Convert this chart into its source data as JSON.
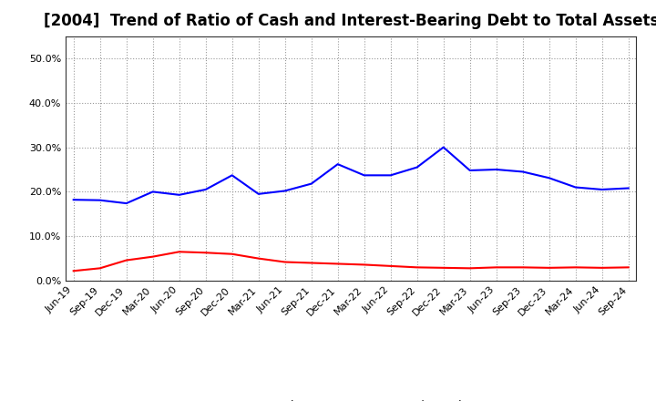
{
  "title": "[2004]  Trend of Ratio of Cash and Interest-Bearing Debt to Total Assets",
  "labels": [
    "Jun-19",
    "Sep-19",
    "Dec-19",
    "Mar-20",
    "Jun-20",
    "Sep-20",
    "Dec-20",
    "Mar-21",
    "Jun-21",
    "Sep-21",
    "Dec-21",
    "Mar-22",
    "Jun-22",
    "Sep-22",
    "Dec-22",
    "Mar-23",
    "Jun-23",
    "Sep-23",
    "Dec-23",
    "Mar-24",
    "Jun-24",
    "Sep-24"
  ],
  "cash": [
    0.022,
    0.028,
    0.046,
    0.054,
    0.065,
    0.063,
    0.06,
    0.05,
    0.042,
    0.04,
    0.038,
    0.036,
    0.033,
    0.03,
    0.029,
    0.028,
    0.03,
    0.03,
    0.029,
    0.03,
    0.029,
    0.03
  ],
  "debt": [
    0.182,
    0.181,
    0.174,
    0.2,
    0.193,
    0.205,
    0.237,
    0.195,
    0.202,
    0.218,
    0.262,
    0.237,
    0.237,
    0.255,
    0.3,
    0.248,
    0.25,
    0.245,
    0.231,
    0.21,
    0.205,
    0.208
  ],
  "cash_color": "#ff0000",
  "debt_color": "#0000ff",
  "background_color": "#ffffff",
  "plot_bg_color": "#ffffff",
  "grid_color": "#999999",
  "title_fontsize": 12,
  "tick_fontsize": 8,
  "ylim": [
    0.0,
    0.55
  ],
  "yticks": [
    0.0,
    0.1,
    0.2,
    0.3,
    0.4,
    0.5
  ],
  "legend_labels": [
    "Cash",
    "Interest-Bearing Debt"
  ],
  "line_width": 1.5
}
